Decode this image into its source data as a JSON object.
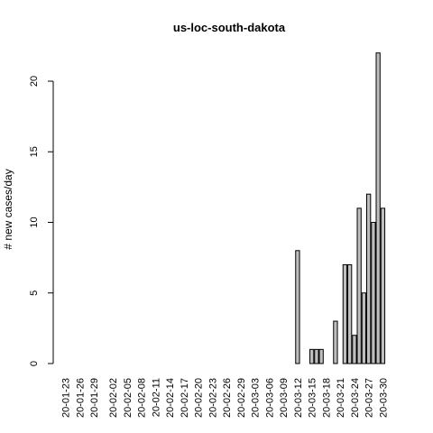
{
  "chart_data": {
    "type": "bar",
    "title": "us-loc-south-dakota",
    "xlabel": "",
    "ylabel": "# new cases/day",
    "ylim": [
      0,
      22
    ],
    "yticks": [
      0,
      5,
      10,
      15,
      20
    ],
    "categories": [
      "20-01-23",
      "20-01-24",
      "20-01-25",
      "20-01-26",
      "20-01-27",
      "20-01-28",
      "20-01-29",
      "20-01-30",
      "20-01-31",
      "20-02-01",
      "20-02-02",
      "20-02-03",
      "20-02-04",
      "20-02-05",
      "20-02-06",
      "20-02-07",
      "20-02-08",
      "20-02-09",
      "20-02-10",
      "20-02-11",
      "20-02-12",
      "20-02-13",
      "20-02-14",
      "20-02-15",
      "20-02-16",
      "20-02-17",
      "20-02-18",
      "20-02-19",
      "20-02-20",
      "20-02-21",
      "20-02-22",
      "20-02-23",
      "20-02-24",
      "20-02-25",
      "20-02-26",
      "20-02-27",
      "20-02-28",
      "20-02-29",
      "20-03-01",
      "20-03-02",
      "20-03-03",
      "20-03-04",
      "20-03-05",
      "20-03-06",
      "20-03-07",
      "20-03-08",
      "20-03-09",
      "20-03-10",
      "20-03-11",
      "20-03-12",
      "20-03-13",
      "20-03-14",
      "20-03-15",
      "20-03-16",
      "20-03-17",
      "20-03-18",
      "20-03-19",
      "20-03-20",
      "20-03-21",
      "20-03-22",
      "20-03-23",
      "20-03-24",
      "20-03-25",
      "20-03-26",
      "20-03-27",
      "20-03-28",
      "20-03-29",
      "20-03-30"
    ],
    "labeled_categories": [
      "20-01-23",
      "20-01-26",
      "20-01-29",
      "20-02-02",
      "20-02-05",
      "20-02-08",
      "20-02-11",
      "20-02-14",
      "20-02-17",
      "20-02-20",
      "20-02-23",
      "20-02-26",
      "20-02-29",
      "20-03-03",
      "20-03-06",
      "20-03-09",
      "20-03-12",
      "20-03-15",
      "20-03-18",
      "20-03-21",
      "20-03-24",
      "20-03-27",
      "20-03-30"
    ],
    "values": [
      0,
      0,
      0,
      0,
      0,
      0,
      0,
      0,
      0,
      0,
      0,
      0,
      0,
      0,
      0,
      0,
      0,
      0,
      0,
      0,
      0,
      0,
      0,
      0,
      0,
      0,
      0,
      0,
      0,
      0,
      0,
      0,
      0,
      0,
      0,
      0,
      0,
      0,
      0,
      0,
      0,
      0,
      0,
      0,
      0,
      0,
      0,
      0,
      0,
      8,
      0,
      0,
      1,
      1,
      1,
      0,
      0,
      3,
      0,
      7,
      7,
      2,
      11,
      5,
      12,
      10,
      22,
      11
    ],
    "colors": {
      "bar_fill": "#bebebe",
      "bar_stroke": "#000000"
    },
    "grid": false,
    "legend": "none"
  }
}
